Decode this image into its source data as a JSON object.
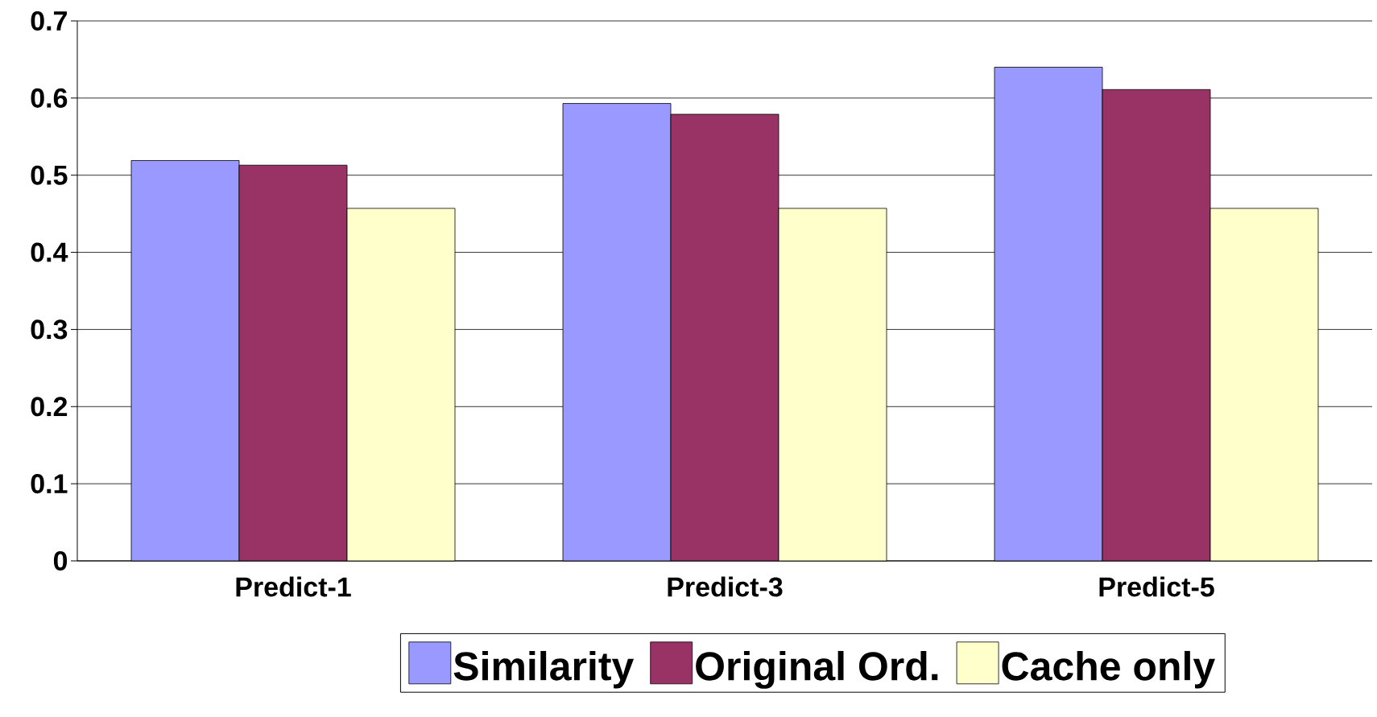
{
  "chart_data": {
    "type": "bar",
    "categories": [
      "Predict-1",
      "Predict-3",
      "Predict-5"
    ],
    "series": [
      {
        "name": "Similarity",
        "color": "#9999ff",
        "values": [
          0.519,
          0.593,
          0.64
        ]
      },
      {
        "name": "Original Ord.",
        "color": "#993366",
        "values": [
          0.513,
          0.579,
          0.611
        ]
      },
      {
        "name": "Cache only",
        "color": "#ffffcc",
        "values": [
          0.457,
          0.457,
          0.457
        ]
      }
    ],
    "ylim": [
      0,
      0.7
    ],
    "yticks": [
      0,
      0.1,
      0.2,
      0.3,
      0.4,
      0.5,
      0.6,
      0.7
    ],
    "grid": "y",
    "legend": "bottom"
  }
}
